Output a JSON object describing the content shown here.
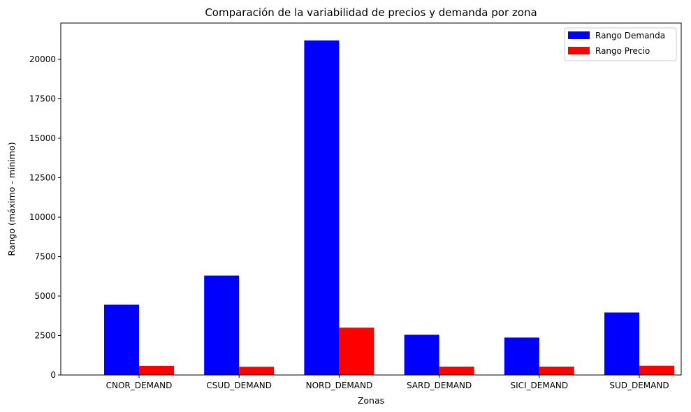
{
  "chart_data": {
    "type": "bar",
    "title": "Comparación de la variabilidad de precios y demanda por zona",
    "xlabel": "Zonas",
    "ylabel": "Rango (máximo - mínimo)",
    "categories": [
      "CNOR_DEMAND",
      "CSUD_DEMAND",
      "NORD_DEMAND",
      "SARD_DEMAND",
      "SICI_DEMAND",
      "SUD_DEMAND"
    ],
    "series": [
      {
        "name": "Rango Demanda",
        "color": "#0000ff",
        "values": [
          4450,
          6300,
          21200,
          2550,
          2370,
          3960
        ]
      },
      {
        "name": "Rango Precio",
        "color": "#ff0000",
        "values": [
          580,
          520,
          3000,
          530,
          530,
          590
        ]
      }
    ],
    "ylim": [
      0,
      22300
    ],
    "yticks": [
      0,
      2500,
      5000,
      7500,
      10000,
      12500,
      15000,
      17500,
      20000
    ],
    "legend_position": "top-right",
    "grid": false
  }
}
